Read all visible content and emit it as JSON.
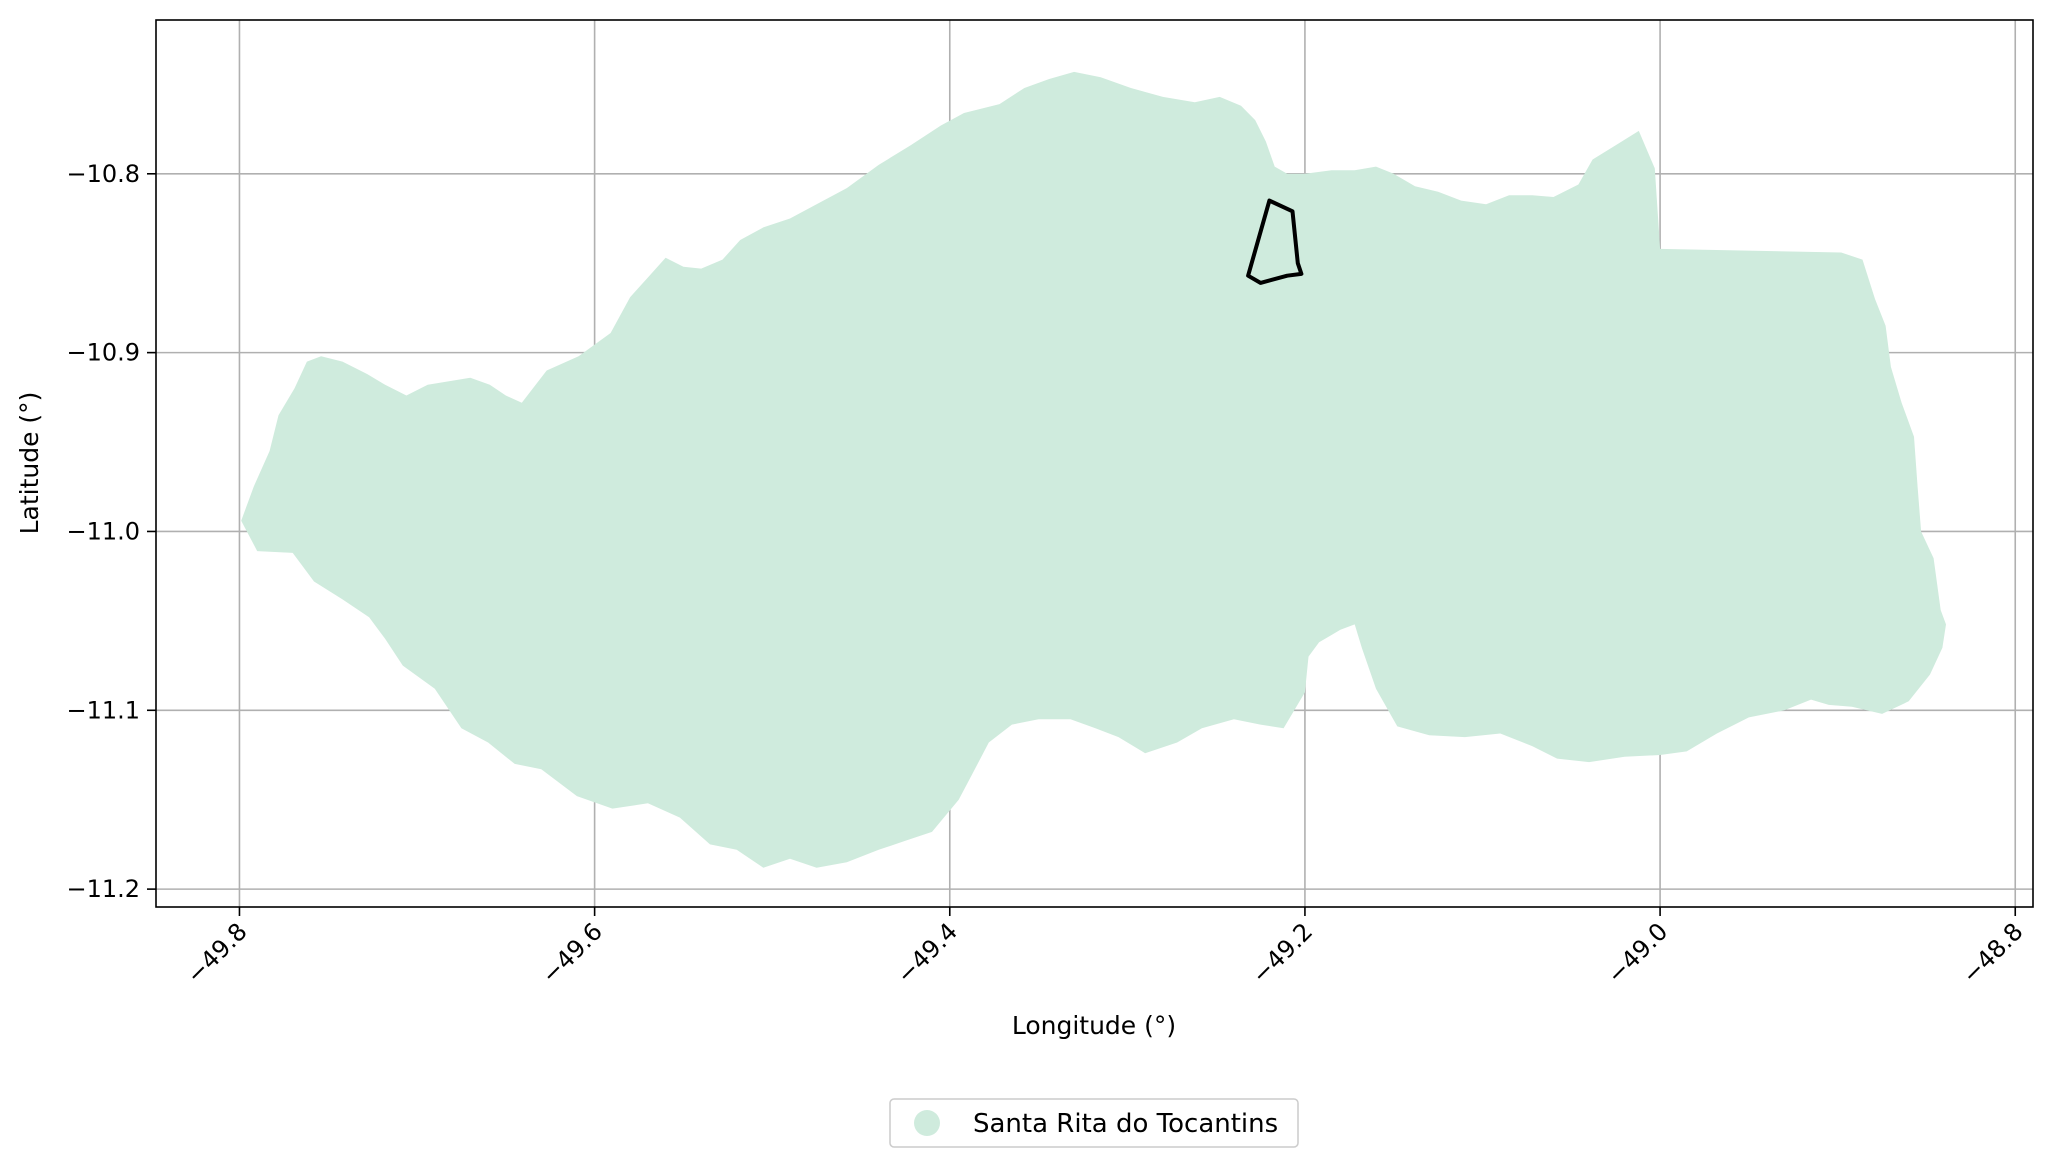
{
  "chart_data": {
    "type": "map",
    "title": "",
    "xlabel": "Longitude (°)",
    "ylabel": "Latitude (°)",
    "xlim": [
      -49.847,
      -48.79
    ],
    "ylim": [
      -11.21,
      -10.714
    ],
    "x_ticks": [
      {
        "value": -49.8,
        "label": "−49.8"
      },
      {
        "value": -49.6,
        "label": "−49.6"
      },
      {
        "value": -49.4,
        "label": "−49.4"
      },
      {
        "value": -49.2,
        "label": "−49.2"
      },
      {
        "value": -49.0,
        "label": "−49.0"
      },
      {
        "value": -48.8,
        "label": "−48.8"
      }
    ],
    "y_ticks": [
      {
        "value": -10.8,
        "label": "−10.8"
      },
      {
        "value": -10.9,
        "label": "−10.9"
      },
      {
        "value": -11.0,
        "label": "−11.0"
      },
      {
        "value": -11.1,
        "label": "−11.1"
      },
      {
        "value": -11.2,
        "label": "−11.2"
      }
    ],
    "grid": true,
    "legend_position": "bottom-center",
    "legend": [
      {
        "label": "Santa Rita do Tocantins",
        "color": "#cfebdd"
      }
    ],
    "regions": [
      {
        "name": "Santa Rita do Tocantins",
        "color": "#cfebdd",
        "coords": [
          [
            -49.799,
            -10.994
          ],
          [
            -49.792,
            -10.975
          ],
          [
            -49.783,
            -10.955
          ],
          [
            -49.778,
            -10.935
          ],
          [
            -49.769,
            -10.92
          ],
          [
            -49.762,
            -10.905
          ],
          [
            -49.754,
            -10.902
          ],
          [
            -49.742,
            -10.905
          ],
          [
            -49.728,
            -10.912
          ],
          [
            -49.718,
            -10.918
          ],
          [
            -49.706,
            -10.924
          ],
          [
            -49.694,
            -10.918
          ],
          [
            -49.682,
            -10.916
          ],
          [
            -49.67,
            -10.914
          ],
          [
            -49.659,
            -10.918
          ],
          [
            -49.65,
            -10.924
          ],
          [
            -49.641,
            -10.928
          ],
          [
            -49.627,
            -10.91
          ],
          [
            -49.609,
            -10.902
          ],
          [
            -49.591,
            -10.889
          ],
          [
            -49.58,
            -10.869
          ],
          [
            -49.57,
            -10.858
          ],
          [
            -49.56,
            -10.847
          ],
          [
            -49.55,
            -10.852
          ],
          [
            -49.54,
            -10.853
          ],
          [
            -49.528,
            -10.848
          ],
          [
            -49.518,
            -10.837
          ],
          [
            -49.505,
            -10.83
          ],
          [
            -49.49,
            -10.825
          ],
          [
            -49.475,
            -10.817
          ],
          [
            -49.458,
            -10.808
          ],
          [
            -49.44,
            -10.795
          ],
          [
            -49.422,
            -10.784
          ],
          [
            -49.405,
            -10.773
          ],
          [
            -49.392,
            -10.766
          ],
          [
            -49.372,
            -10.761
          ],
          [
            -49.358,
            -10.752
          ],
          [
            -49.344,
            -10.747
          ],
          [
            -49.33,
            -10.743
          ],
          [
            -49.315,
            -10.746
          ],
          [
            -49.298,
            -10.752
          ],
          [
            -49.28,
            -10.757
          ],
          [
            -49.262,
            -10.76
          ],
          [
            -49.248,
            -10.757
          ],
          [
            -49.236,
            -10.762
          ],
          [
            -49.228,
            -10.77
          ],
          [
            -49.222,
            -10.782
          ],
          [
            -49.217,
            -10.796
          ],
          [
            -49.21,
            -10.8
          ],
          [
            -49.2,
            -10.8
          ],
          [
            -49.185,
            -10.798
          ],
          [
            -49.172,
            -10.798
          ],
          [
            -49.16,
            -10.796
          ],
          [
            -49.15,
            -10.8
          ],
          [
            -49.138,
            -10.807
          ],
          [
            -49.125,
            -10.81
          ],
          [
            -49.112,
            -10.815
          ],
          [
            -49.098,
            -10.817
          ],
          [
            -49.085,
            -10.812
          ],
          [
            -49.072,
            -10.812
          ],
          [
            -49.06,
            -10.813
          ],
          [
            -49.046,
            -10.806
          ],
          [
            -49.038,
            -10.792
          ],
          [
            -49.025,
            -10.784
          ],
          [
            -49.012,
            -10.776
          ],
          [
            -49.003,
            -10.797
          ],
          [
            -49.0,
            -10.842
          ],
          [
            -48.898,
            -10.844
          ],
          [
            -48.886,
            -10.848
          ],
          [
            -48.879,
            -10.87
          ],
          [
            -48.873,
            -10.885
          ],
          [
            -48.87,
            -10.908
          ],
          [
            -48.864,
            -10.928
          ],
          [
            -48.857,
            -10.947
          ],
          [
            -48.855,
            -10.975
          ],
          [
            -48.853,
            -11.0
          ],
          [
            -48.846,
            -11.015
          ],
          [
            -48.842,
            -11.044
          ],
          [
            -48.839,
            -11.052
          ],
          [
            -48.841,
            -11.065
          ],
          [
            -48.848,
            -11.08
          ],
          [
            -48.86,
            -11.095
          ],
          [
            -48.875,
            -11.102
          ],
          [
            -48.892,
            -11.098
          ],
          [
            -48.905,
            -11.097
          ],
          [
            -48.915,
            -11.094
          ],
          [
            -48.93,
            -11.1
          ],
          [
            -48.95,
            -11.104
          ],
          [
            -48.968,
            -11.113
          ],
          [
            -48.985,
            -11.123
          ],
          [
            -49.0,
            -11.125
          ],
          [
            -49.02,
            -11.126
          ],
          [
            -49.04,
            -11.129
          ],
          [
            -49.058,
            -11.127
          ],
          [
            -49.072,
            -11.12
          ],
          [
            -49.09,
            -11.113
          ],
          [
            -49.11,
            -11.115
          ],
          [
            -49.13,
            -11.114
          ],
          [
            -49.148,
            -11.109
          ],
          [
            -49.16,
            -11.088
          ],
          [
            -49.168,
            -11.065
          ],
          [
            -49.172,
            -11.052
          ],
          [
            -49.18,
            -11.055
          ],
          [
            -49.192,
            -11.062
          ],
          [
            -49.198,
            -11.07
          ],
          [
            -49.2,
            -11.09
          ],
          [
            -49.212,
            -11.11
          ],
          [
            -49.225,
            -11.108
          ],
          [
            -49.24,
            -11.105
          ],
          [
            -49.258,
            -11.11
          ],
          [
            -49.272,
            -11.118
          ],
          [
            -49.29,
            -11.124
          ],
          [
            -49.305,
            -11.115
          ],
          [
            -49.318,
            -11.11
          ],
          [
            -49.332,
            -11.105
          ],
          [
            -49.35,
            -11.105
          ],
          [
            -49.365,
            -11.108
          ],
          [
            -49.378,
            -11.118
          ],
          [
            -49.387,
            -11.135
          ],
          [
            -49.395,
            -11.15
          ],
          [
            -49.41,
            -11.168
          ],
          [
            -49.425,
            -11.173
          ],
          [
            -49.44,
            -11.178
          ],
          [
            -49.458,
            -11.185
          ],
          [
            -49.475,
            -11.188
          ],
          [
            -49.49,
            -11.183
          ],
          [
            -49.505,
            -11.188
          ],
          [
            -49.52,
            -11.178
          ],
          [
            -49.535,
            -11.175
          ],
          [
            -49.552,
            -11.16
          ],
          [
            -49.57,
            -11.152
          ],
          [
            -49.59,
            -11.155
          ],
          [
            -49.61,
            -11.148
          ],
          [
            -49.63,
            -11.133
          ],
          [
            -49.645,
            -11.13
          ],
          [
            -49.66,
            -11.118
          ],
          [
            -49.675,
            -11.11
          ],
          [
            -49.69,
            -11.088
          ],
          [
            -49.708,
            -11.075
          ],
          [
            -49.718,
            -11.06
          ],
          [
            -49.727,
            -11.048
          ],
          [
            -49.742,
            -11.038
          ],
          [
            -49.758,
            -11.028
          ],
          [
            -49.77,
            -11.012
          ],
          [
            -49.79,
            -11.011
          ]
        ]
      }
    ],
    "outlines": [
      {
        "coords": [
          [
            -49.22,
            -10.815
          ],
          [
            -49.207,
            -10.821
          ],
          [
            -49.204,
            -10.85
          ],
          [
            -49.202,
            -10.856
          ],
          [
            -49.21,
            -10.857
          ],
          [
            -49.225,
            -10.861
          ],
          [
            -49.232,
            -10.857
          ]
        ]
      }
    ]
  }
}
